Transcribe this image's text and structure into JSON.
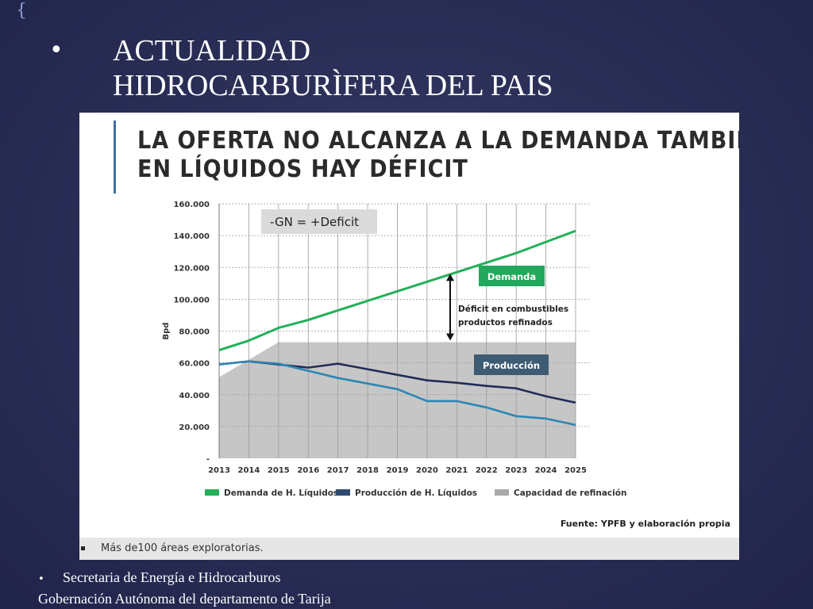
{
  "slide": {
    "title_bullet": "•",
    "title_lines": [
      "ACTUALIDAD",
      "HIDROCARBURÌFERA DEL PAIS"
    ],
    "footer_bullet": "•",
    "footer_lines": [
      "Secretaria de Energía e Hidrocarburos",
      "Gobernación Autónoma del departamento de Tarija"
    ],
    "bottom_note": "Más de100 áreas exploratorias."
  },
  "panel": {
    "heading_lines": [
      "LA OFERTA NO ALCANZA A LA DEMANDA TAMBIÉN",
      "EN LÍQUIDOS HAY DÉFICIT"
    ],
    "source": "Fuente: YPFB y elaboración propia"
  },
  "chart_data": {
    "type": "line",
    "title": "",
    "xlabel": "",
    "ylabel": "Bpd",
    "categories": [
      "2013",
      "2014",
      "2015",
      "2016",
      "2017",
      "2018",
      "2019",
      "2020",
      "2021",
      "2022",
      "2023",
      "2024",
      "2025"
    ],
    "ylim": [
      0,
      160000
    ],
    "yticks": [
      {
        "value": 0,
        "label": "-"
      },
      {
        "value": 20000,
        "label": "20.000"
      },
      {
        "value": 40000,
        "label": "40.000"
      },
      {
        "value": 60000,
        "label": "60.000"
      },
      {
        "value": 80000,
        "label": "80.000"
      },
      {
        "value": 100000,
        "label": "100.000"
      },
      {
        "value": 120000,
        "label": "120.000"
      },
      {
        "value": 140000,
        "label": "140.000"
      },
      {
        "value": 160000,
        "label": "160.000"
      }
    ],
    "grid": true,
    "series": [
      {
        "name": "Demanda de H. Líquidos",
        "kind": "line",
        "color": "#23b05a",
        "values": [
          68000,
          74000,
          82000,
          87000,
          93000,
          99000,
          105000,
          111000,
          117000,
          123000,
          129000,
          136000,
          143000
        ]
      },
      {
        "name": "Producción de H. Líquidos",
        "kind": "line",
        "color": "#1f2d5a",
        "values": [
          59000,
          61000,
          59000,
          57000,
          59500,
          56000,
          52500,
          49000,
          47500,
          45500,
          44000,
          39000,
          35000
        ]
      },
      {
        "name": "",
        "kind": "line",
        "color": "#2b86b5",
        "values": [
          59000,
          61000,
          59500,
          55000,
          50500,
          47000,
          43500,
          36000,
          36000,
          32000,
          26500,
          25000,
          21000
        ]
      },
      {
        "name": "Capacidad de refinación",
        "kind": "area",
        "color": "#c6c6c6",
        "values": [
          51000,
          62000,
          73000,
          73000,
          73000,
          73000,
          73000,
          73000,
          73000,
          73000,
          73000,
          73000,
          73000
        ]
      }
    ],
    "legend": {
      "placement": "bottom",
      "items": [
        {
          "label": "Demanda de H. Líquidos",
          "color": "#23b05a"
        },
        {
          "label": "Producción de H. Líquidos",
          "color": "#2e4a6e"
        },
        {
          "label": "Capacidad de refinación",
          "color": "#aaaaaa"
        }
      ]
    },
    "annotations": {
      "formula": "-GN = +Deficit",
      "demand_label": "Demanda",
      "production_label": "Producción",
      "deficit_label_lines": [
        "Déficit en combustibles",
        "productos refinados"
      ]
    }
  },
  "colors": {
    "background": "#2c3058",
    "demand_badge": "#22a85a",
    "production_badge": "#3e5b74",
    "formula_box": "#dadada"
  }
}
